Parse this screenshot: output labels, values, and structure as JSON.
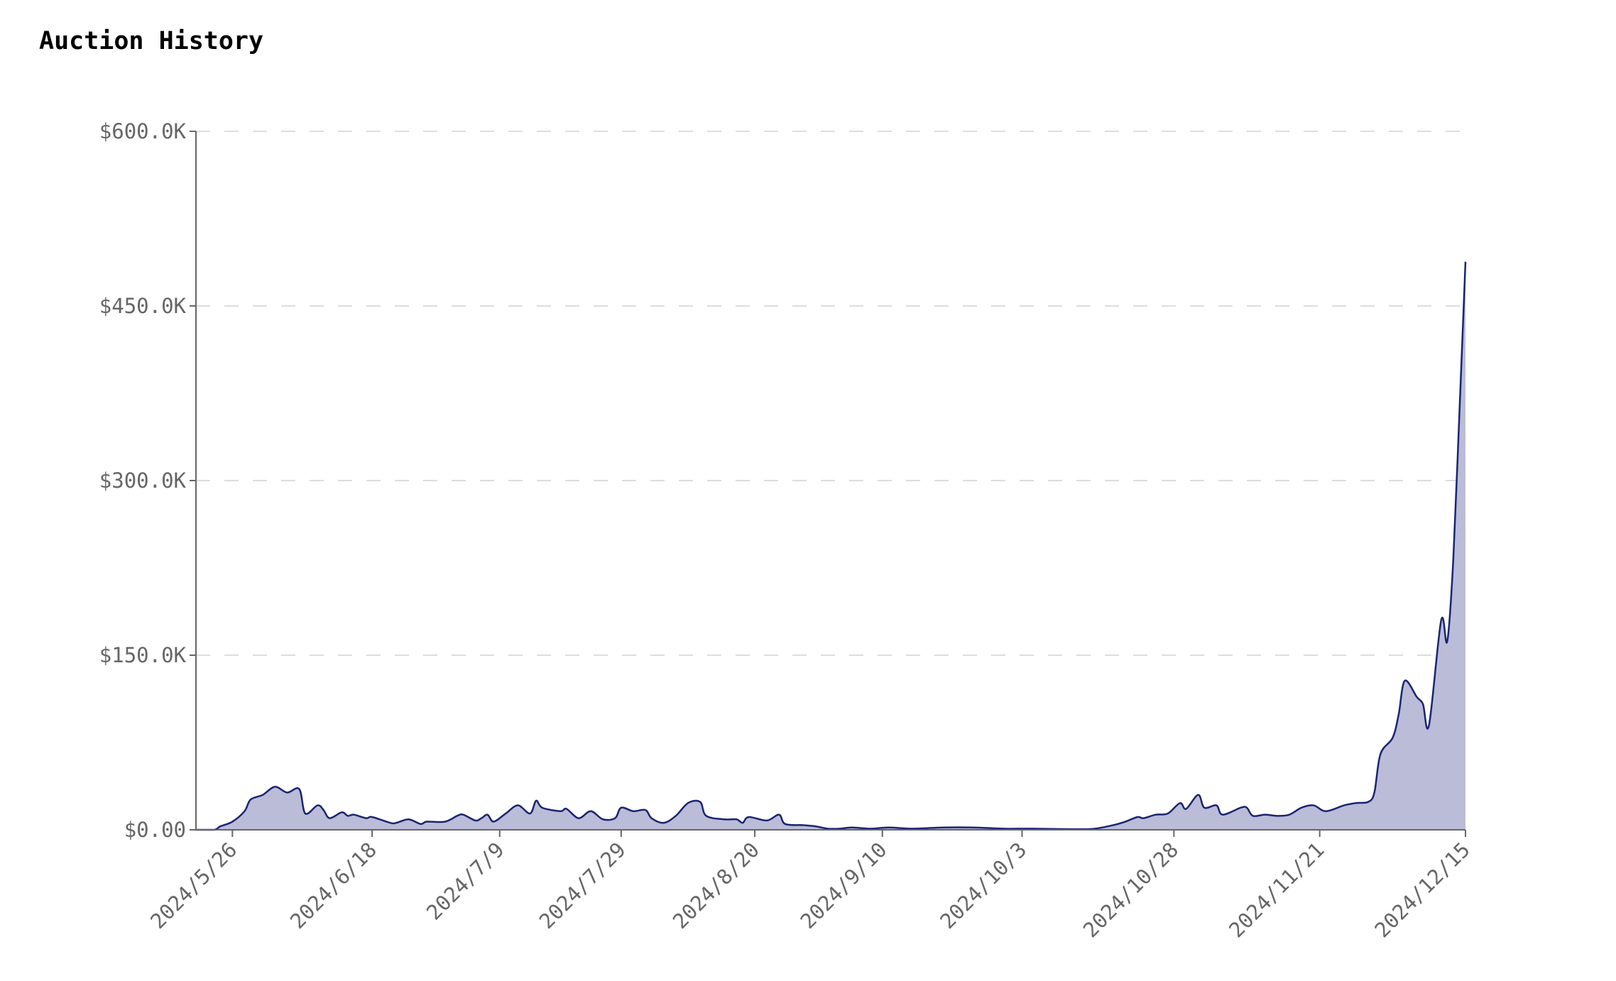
{
  "title": "Auction History",
  "chart_data": {
    "type": "area",
    "title": "Auction History",
    "xlabel": "",
    "ylabel": "",
    "xlim": [
      "2024-05-20",
      "2024-12-15"
    ],
    "ylim": [
      0,
      600000
    ],
    "grid": "horizontal dashed",
    "colors": {
      "line": "#1b2470",
      "fill": "#babcd8",
      "grid": "#dddddd",
      "axis": "#666666"
    },
    "y_ticks": [
      {
        "value": 0,
        "label": "$0.00"
      },
      {
        "value": 150000,
        "label": "$150.0K"
      },
      {
        "value": 300000,
        "label": "$300.0K"
      },
      {
        "value": 450000,
        "label": "$450.0K"
      },
      {
        "value": 600000,
        "label": "$600.0K"
      }
    ],
    "x_ticks": [
      {
        "date": "2024-05-26",
        "label": "2024/5/26"
      },
      {
        "date": "2024-06-18",
        "label": "2024/6/18"
      },
      {
        "date": "2024-07-09",
        "label": "2024/7/9"
      },
      {
        "date": "2024-07-29",
        "label": "2024/7/29"
      },
      {
        "date": "2024-08-20",
        "label": "2024/8/20"
      },
      {
        "date": "2024-09-10",
        "label": "2024/9/10"
      },
      {
        "date": "2024-10-03",
        "label": "2024/10/3"
      },
      {
        "date": "2024-10-28",
        "label": "2024/10/28"
      },
      {
        "date": "2024-11-21",
        "label": "2024/11/21"
      },
      {
        "date": "2024-12-15",
        "label": "2024/12/15"
      }
    ],
    "points": [
      [
        "2024-05-20",
        0
      ],
      [
        "2024-05-23",
        0
      ],
      [
        "2024-05-24",
        3000
      ],
      [
        "2024-05-26",
        7000
      ],
      [
        "2024-05-28",
        16000
      ],
      [
        "2024-05-29",
        26000
      ],
      [
        "2024-05-31",
        30000
      ],
      [
        "2024-06-02",
        37000
      ],
      [
        "2024-06-04",
        32000
      ],
      [
        "2024-06-06",
        35000
      ],
      [
        "2024-06-07",
        14000
      ],
      [
        "2024-06-09",
        21000
      ],
      [
        "2024-06-10",
        17000
      ],
      [
        "2024-06-11",
        10000
      ],
      [
        "2024-06-13",
        15000
      ],
      [
        "2024-06-14",
        12000
      ],
      [
        "2024-06-15",
        13000
      ],
      [
        "2024-06-17",
        10000
      ],
      [
        "2024-06-18",
        11000
      ],
      [
        "2024-06-21",
        6000
      ],
      [
        "2024-06-22",
        6000
      ],
      [
        "2024-06-24",
        9000
      ],
      [
        "2024-06-26",
        5000
      ],
      [
        "2024-06-27",
        7000
      ],
      [
        "2024-06-30",
        7000
      ],
      [
        "2024-07-02",
        12000
      ],
      [
        "2024-07-03",
        13000
      ],
      [
        "2024-07-05",
        8000
      ],
      [
        "2024-07-06",
        10000
      ],
      [
        "2024-07-07",
        13000
      ],
      [
        "2024-07-08",
        7000
      ],
      [
        "2024-07-10",
        14000
      ],
      [
        "2024-07-12",
        21000
      ],
      [
        "2024-07-14",
        14000
      ],
      [
        "2024-07-15",
        25000
      ],
      [
        "2024-07-16",
        19000
      ],
      [
        "2024-07-19",
        16000
      ],
      [
        "2024-07-20",
        18000
      ],
      [
        "2024-07-22",
        10000
      ],
      [
        "2024-07-24",
        16000
      ],
      [
        "2024-07-26",
        9000
      ],
      [
        "2024-07-28",
        10000
      ],
      [
        "2024-07-29",
        19000
      ],
      [
        "2024-07-31",
        16000
      ],
      [
        "2024-08-02",
        17000
      ],
      [
        "2024-08-03",
        10000
      ],
      [
        "2024-08-05",
        6000
      ],
      [
        "2024-08-07",
        12000
      ],
      [
        "2024-08-09",
        23000
      ],
      [
        "2024-08-11",
        24000
      ],
      [
        "2024-08-12",
        12000
      ],
      [
        "2024-08-15",
        9000
      ],
      [
        "2024-08-17",
        9000
      ],
      [
        "2024-08-18",
        6000
      ],
      [
        "2024-08-19",
        11000
      ],
      [
        "2024-08-22",
        8000
      ],
      [
        "2024-08-24",
        13000
      ],
      [
        "2024-08-25",
        5000
      ],
      [
        "2024-08-28",
        4000
      ],
      [
        "2024-08-30",
        3000
      ],
      [
        "2024-09-01",
        1000
      ],
      [
        "2024-09-03",
        1000
      ],
      [
        "2024-09-05",
        2000
      ],
      [
        "2024-09-08",
        1000
      ],
      [
        "2024-09-11",
        2000
      ],
      [
        "2024-09-15",
        1000
      ],
      [
        "2024-09-20",
        2000
      ],
      [
        "2024-09-25",
        2000
      ],
      [
        "2024-09-30",
        1000
      ],
      [
        "2024-10-05",
        1000
      ],
      [
        "2024-10-12",
        500
      ],
      [
        "2024-10-15",
        1000
      ],
      [
        "2024-10-18",
        4000
      ],
      [
        "2024-10-20",
        7000
      ],
      [
        "2024-10-22",
        11000
      ],
      [
        "2024-10-23",
        10000
      ],
      [
        "2024-10-25",
        13000
      ],
      [
        "2024-10-27",
        14000
      ],
      [
        "2024-10-29",
        23000
      ],
      [
        "2024-10-30",
        18000
      ],
      [
        "2024-11-01",
        30000
      ],
      [
        "2024-11-02",
        19000
      ],
      [
        "2024-11-04",
        21000
      ],
      [
        "2024-11-05",
        13000
      ],
      [
        "2024-11-08",
        19000
      ],
      [
        "2024-11-09",
        19000
      ],
      [
        "2024-11-10",
        12000
      ],
      [
        "2024-11-12",
        13000
      ],
      [
        "2024-11-14",
        12000
      ],
      [
        "2024-11-16",
        13000
      ],
      [
        "2024-11-18",
        19000
      ],
      [
        "2024-11-20",
        21000
      ],
      [
        "2024-11-22",
        16000
      ],
      [
        "2024-11-25",
        21000
      ],
      [
        "2024-11-27",
        23000
      ],
      [
        "2024-11-29",
        24000
      ],
      [
        "2024-11-30",
        32000
      ],
      [
        "2024-12-01",
        65000
      ],
      [
        "2024-12-03",
        79000
      ],
      [
        "2024-12-04",
        99000
      ],
      [
        "2024-12-05",
        128000
      ],
      [
        "2024-12-07",
        114000
      ],
      [
        "2024-12-08",
        108000
      ],
      [
        "2024-12-09",
        90000
      ],
      [
        "2024-12-11",
        180000
      ],
      [
        "2024-12-12",
        162000
      ],
      [
        "2024-12-13",
        233000
      ],
      [
        "2024-12-14",
        358000
      ],
      [
        "2024-12-15",
        488000
      ]
    ]
  }
}
